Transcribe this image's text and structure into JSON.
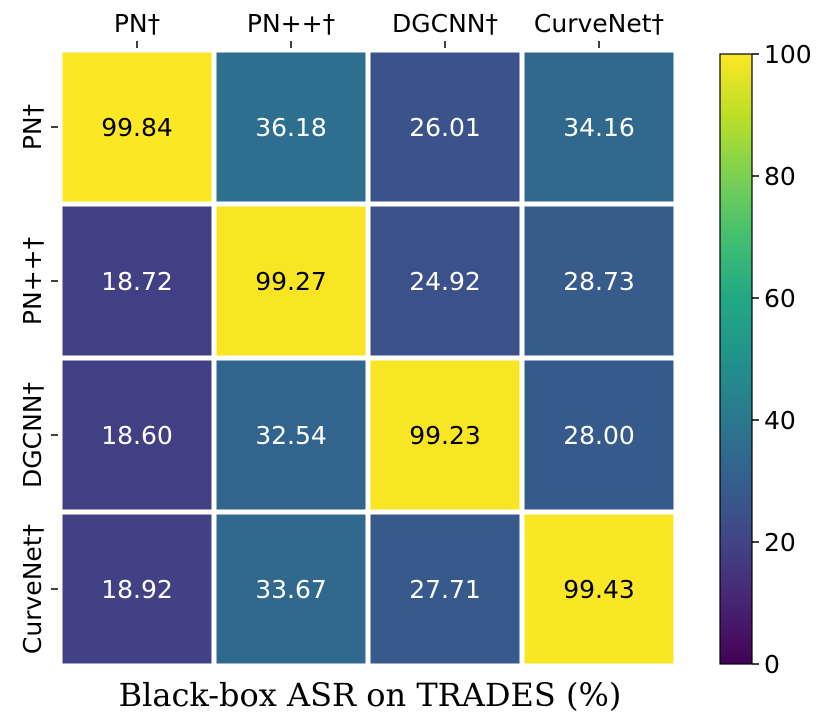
{
  "chart_data": {
    "type": "heatmap",
    "row_labels": [
      "PN†",
      "PN++†",
      "DGCNN†",
      "CurveNet†"
    ],
    "col_labels": [
      "PN†",
      "PN++†",
      "DGCNN†",
      "CurveNet†"
    ],
    "values": [
      [
        99.84,
        36.18,
        26.01,
        34.16
      ],
      [
        18.72,
        99.27,
        24.92,
        28.73
      ],
      [
        18.6,
        32.54,
        99.23,
        28.0
      ],
      [
        18.92,
        33.67,
        27.71,
        99.43
      ]
    ],
    "cell_labels": [
      [
        "99.84",
        "36.18",
        "26.01",
        "34.16"
      ],
      [
        "18.72",
        "99.27",
        "24.92",
        "28.73"
      ],
      [
        "18.60",
        "32.54",
        "99.23",
        "28.00"
      ],
      [
        "18.92",
        "33.67",
        "27.71",
        "99.43"
      ]
    ],
    "xlabel": "Black-box ASR on TRADES (%)",
    "colormap": "viridis",
    "colorbar": {
      "range": [
        0,
        100
      ],
      "ticks": [
        "0",
        "20",
        "40",
        "60",
        "80",
        "100"
      ]
    },
    "x_tick_position": "top",
    "grid": false
  }
}
